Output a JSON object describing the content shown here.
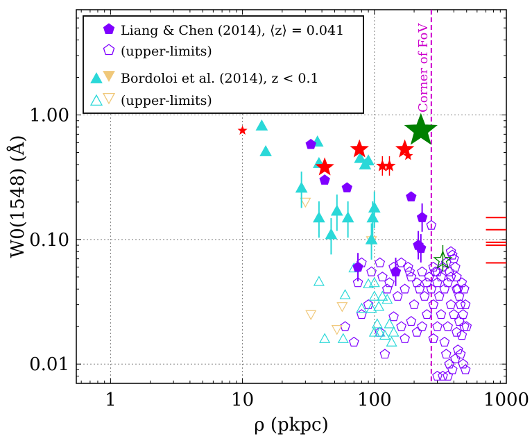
{
  "colors": {
    "liang": "#7f00ff",
    "bord_det": "#2ad8d8",
    "bord_ul": "#f0c87a",
    "red_star": "#ff0000",
    "green_star": "#008000",
    "fov_line": "#cc00cc",
    "grid": "#808080"
  },
  "chart_data": {
    "type": "scatter",
    "xscale": "log",
    "yscale": "log",
    "xlim": [
      0.55,
      1000
    ],
    "ylim": [
      0.007,
      7
    ],
    "xlabel": "ρ (pkpc)",
    "ylabel": "W0(1548) (Å)",
    "xticks": [
      "1",
      "10",
      "100",
      "1000"
    ],
    "yticks": [
      "0.01",
      "0.10",
      "1.00"
    ],
    "grid": true,
    "legend_position": "top-left",
    "legend": [
      {
        "marker": "pentagon-filled",
        "label": "Liang & Chen (2014), ⟨z⟩ = 0.041"
      },
      {
        "marker": "pentagon-open",
        "label": "(upper-limits)"
      },
      {
        "marker": "triangles-filled",
        "label": "Bordoloi et al. (2014), z < 0.1"
      },
      {
        "marker": "triangles-open",
        "label": "(upper-limits)"
      }
    ],
    "annotation": "Corner of FoV",
    "fov_x": 270,
    "series": [
      {
        "name": "Liang & Chen (2014)",
        "marker": "pentagon-filled",
        "points": [
          [
            33,
            0.58
          ],
          [
            42,
            0.3
          ],
          [
            62,
            0.26
          ],
          [
            190,
            0.22
          ],
          [
            215,
            0.09
          ],
          [
            225,
            0.085
          ],
          [
            230,
            0.15
          ],
          [
            145,
            0.055
          ],
          [
            75,
            0.06
          ]
        ]
      },
      {
        "name": "Liang & Chen (2014) upper-limits",
        "marker": "pentagon-open",
        "points": [
          [
            75,
            0.045
          ],
          [
            80,
            0.065
          ],
          [
            95,
            0.055
          ],
          [
            110,
            0.065
          ],
          [
            115,
            0.05
          ],
          [
            125,
            0.04
          ],
          [
            130,
            0.045
          ],
          [
            140,
            0.06
          ],
          [
            150,
            0.035
          ],
          [
            160,
            0.065
          ],
          [
            170,
            0.04
          ],
          [
            180,
            0.06
          ],
          [
            185,
            0.055
          ],
          [
            190,
            0.05
          ],
          [
            200,
            0.03
          ],
          [
            210,
            0.045
          ],
          [
            220,
            0.04
          ],
          [
            230,
            0.055
          ],
          [
            240,
            0.035
          ],
          [
            250,
            0.045
          ],
          [
            260,
            0.05
          ],
          [
            270,
            0.04
          ],
          [
            280,
            0.06
          ],
          [
            290,
            0.055
          ],
          [
            300,
            0.045
          ],
          [
            310,
            0.035
          ],
          [
            320,
            0.05
          ],
          [
            330,
            0.06
          ],
          [
            340,
            0.04
          ],
          [
            350,
            0.065
          ],
          [
            360,
            0.045
          ],
          [
            370,
            0.055
          ],
          [
            380,
            0.08
          ],
          [
            390,
            0.075
          ],
          [
            400,
            0.07
          ],
          [
            410,
            0.06
          ],
          [
            420,
            0.05
          ],
          [
            430,
            0.04
          ],
          [
            440,
            0.035
          ],
          [
            450,
            0.03
          ],
          [
            460,
            0.045
          ],
          [
            470,
            0.025
          ],
          [
            480,
            0.04
          ],
          [
            490,
            0.03
          ],
          [
            500,
            0.02
          ],
          [
            300,
            0.02
          ],
          [
            320,
            0.025
          ],
          [
            340,
            0.015
          ],
          [
            360,
            0.02
          ],
          [
            380,
            0.03
          ],
          [
            400,
            0.025
          ],
          [
            420,
            0.018
          ],
          [
            440,
            0.022
          ],
          [
            460,
            0.017
          ],
          [
            480,
            0.02
          ],
          [
            350,
            0.012
          ],
          [
            370,
            0.01
          ],
          [
            390,
            0.009
          ],
          [
            410,
            0.011
          ],
          [
            430,
            0.013
          ],
          [
            450,
            0.012
          ],
          [
            470,
            0.01
          ],
          [
            490,
            0.009
          ],
          [
            250,
            0.025
          ],
          [
            230,
            0.02
          ],
          [
            210,
            0.018
          ],
          [
            190,
            0.022
          ],
          [
            170,
            0.016
          ],
          [
            140,
            0.024
          ],
          [
            110,
            0.018
          ],
          [
            90,
            0.03
          ],
          [
            80,
            0.025
          ],
          [
            70,
            0.015
          ],
          [
            60,
            0.02
          ],
          [
            120,
            0.012
          ],
          [
            160,
            0.02
          ],
          [
            280,
            0.03
          ],
          [
            300,
            0.008
          ],
          [
            330,
            0.008
          ],
          [
            360,
            0.008
          ],
          [
            270,
            0.13
          ],
          [
            300,
            0.055
          ],
          [
            280,
            0.016
          ],
          [
            420,
            0.04
          ],
          [
            380,
            0.05
          ]
        ]
      },
      {
        "name": "Bordoloi et al. (2014)",
        "marker": "triangle-up-filled",
        "points": [
          [
            14,
            0.82
          ],
          [
            15,
            0.51
          ],
          [
            37,
            0.61
          ],
          [
            38,
            0.41
          ],
          [
            28,
            0.26
          ],
          [
            38,
            0.15
          ],
          [
            47,
            0.11
          ],
          [
            52,
            0.17
          ],
          [
            63,
            0.15
          ],
          [
            78,
            0.45
          ],
          [
            85,
            0.4
          ],
          [
            90,
            0.43
          ],
          [
            97,
            0.15
          ],
          [
            100,
            0.18
          ],
          [
            95,
            0.1
          ]
        ]
      },
      {
        "name": "Bordoloi et al. (2014) upper-limits",
        "marker": "triangle-mixed-open",
        "points": [
          [
            30,
            0.2
          ],
          [
            33,
            0.025
          ],
          [
            52,
            0.019
          ],
          [
            57,
            0.029
          ],
          [
            95,
            0.098
          ],
          [
            38,
            0.046
          ],
          [
            42,
            0.016
          ],
          [
            58,
            0.016
          ],
          [
            60,
            0.036
          ],
          [
            70,
            0.059
          ],
          [
            80,
            0.028
          ],
          [
            90,
            0.044
          ],
          [
            95,
            0.028
          ],
          [
            100,
            0.035
          ],
          [
            100,
            0.018
          ],
          [
            105,
            0.021
          ],
          [
            108,
            0.029
          ],
          [
            110,
            0.018
          ],
          [
            115,
            0.035
          ],
          [
            120,
            0.017
          ],
          [
            125,
            0.033
          ],
          [
            130,
            0.021
          ],
          [
            135,
            0.015
          ],
          [
            140,
            0.018
          ],
          [
            100,
            0.045
          ]
        ]
      },
      {
        "name": "Stars",
        "marker": "star",
        "points": [
          [
            10,
            0.75
          ],
          [
            42,
            0.38
          ],
          [
            77,
            0.53
          ],
          [
            115,
            0.39
          ],
          [
            130,
            0.39
          ],
          [
            170,
            0.53
          ],
          [
            180,
            0.47
          ],
          [
            225,
            0.75
          ],
          [
            330,
            0.068
          ]
        ]
      },
      {
        "name": "Upper limits (right edge)",
        "marker": "hline",
        "points": [
          [
            700,
            0.15
          ],
          [
            700,
            0.12
          ],
          [
            700,
            0.095
          ],
          [
            700,
            0.09
          ],
          [
            700,
            0.065
          ]
        ]
      }
    ]
  }
}
